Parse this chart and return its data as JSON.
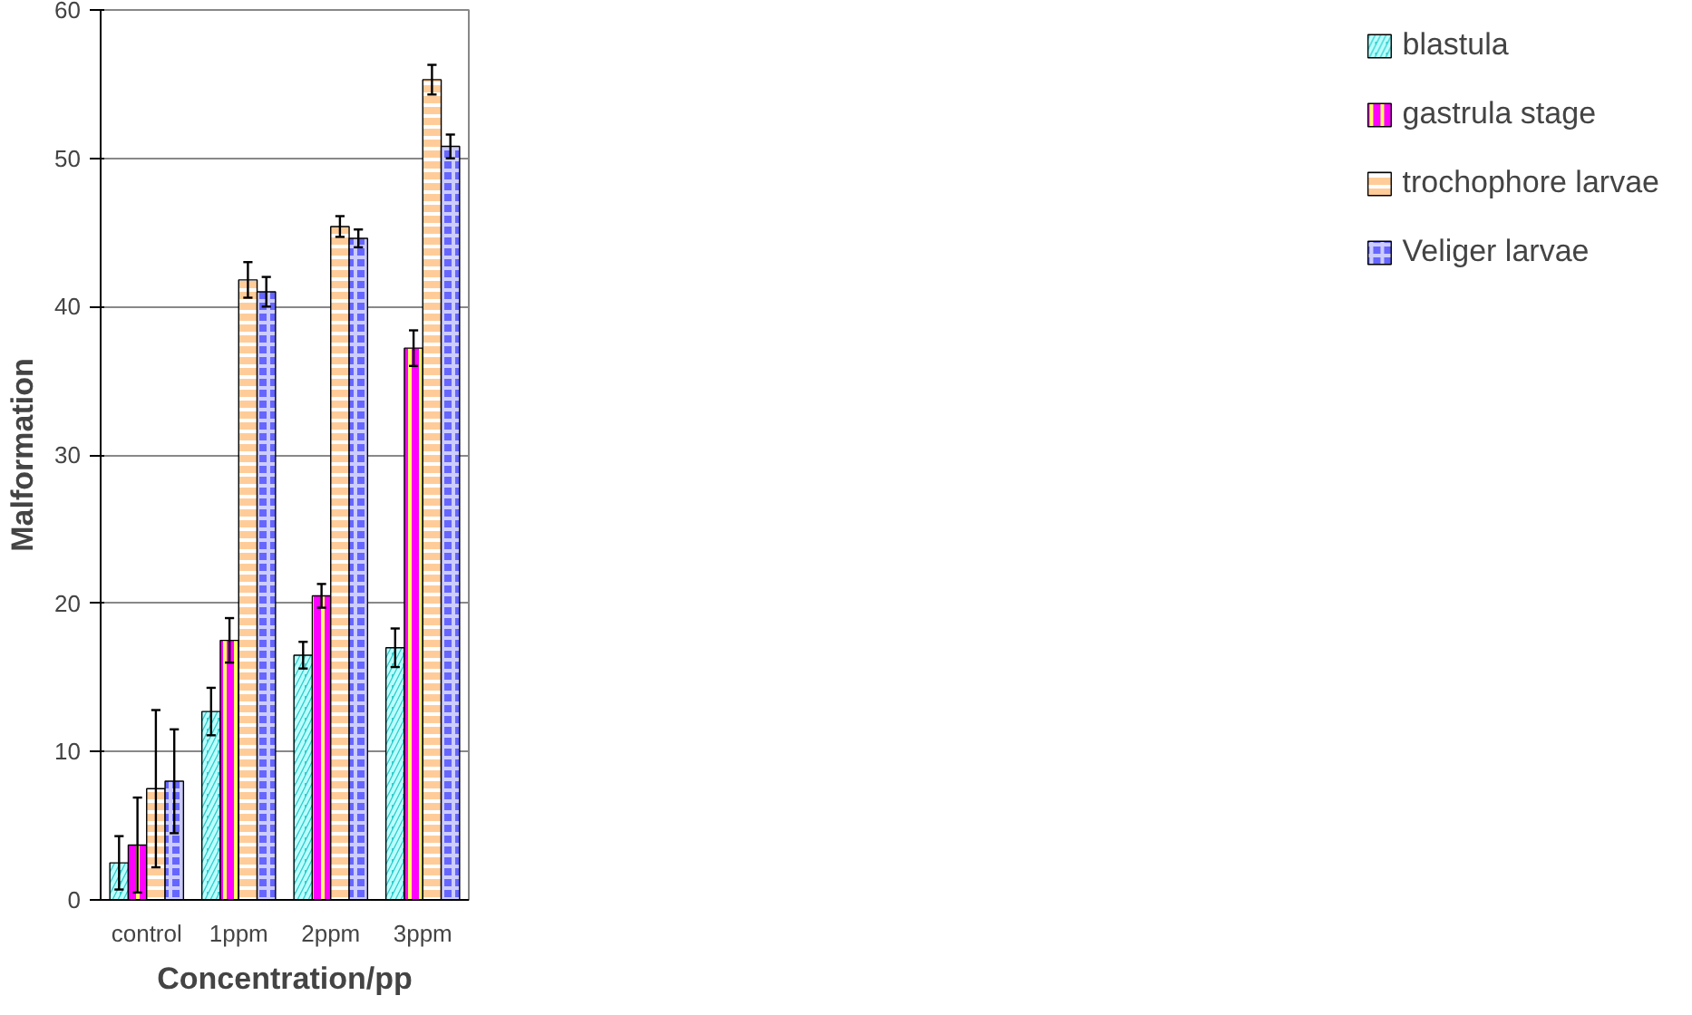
{
  "chart_data": {
    "type": "bar",
    "xlabel": "Concentration/pp",
    "ylabel": "Malformation",
    "categories": [
      "control",
      "1ppm",
      "2ppm",
      "3ppm"
    ],
    "series": [
      {
        "name": "blastula",
        "color": "#33cccc",
        "values": [
          2.5,
          12.7,
          16.5,
          17.0
        ],
        "errors": [
          1.8,
          1.6,
          0.9,
          1.3
        ]
      },
      {
        "name": "gastrula stage",
        "color": "#ff00ff",
        "values": [
          3.7,
          17.5,
          20.5,
          37.2
        ],
        "errors": [
          3.2,
          1.5,
          0.8,
          1.2
        ]
      },
      {
        "name": "trochophore larvae",
        "color": "#ffcc99",
        "values": [
          7.5,
          41.8,
          45.4,
          55.3
        ],
        "errors": [
          5.3,
          1.2,
          0.7,
          1.0
        ]
      },
      {
        "name": "Veliger larvae",
        "color": "#6666ff",
        "values": [
          8.0,
          41.0,
          44.6,
          50.8
        ],
        "errors": [
          3.5,
          1.0,
          0.6,
          0.8
        ]
      }
    ],
    "ylim": [
      0,
      60
    ],
    "yticks": [
      0,
      10,
      20,
      30,
      40,
      50,
      60
    ],
    "grid": "y",
    "legend": "right"
  }
}
